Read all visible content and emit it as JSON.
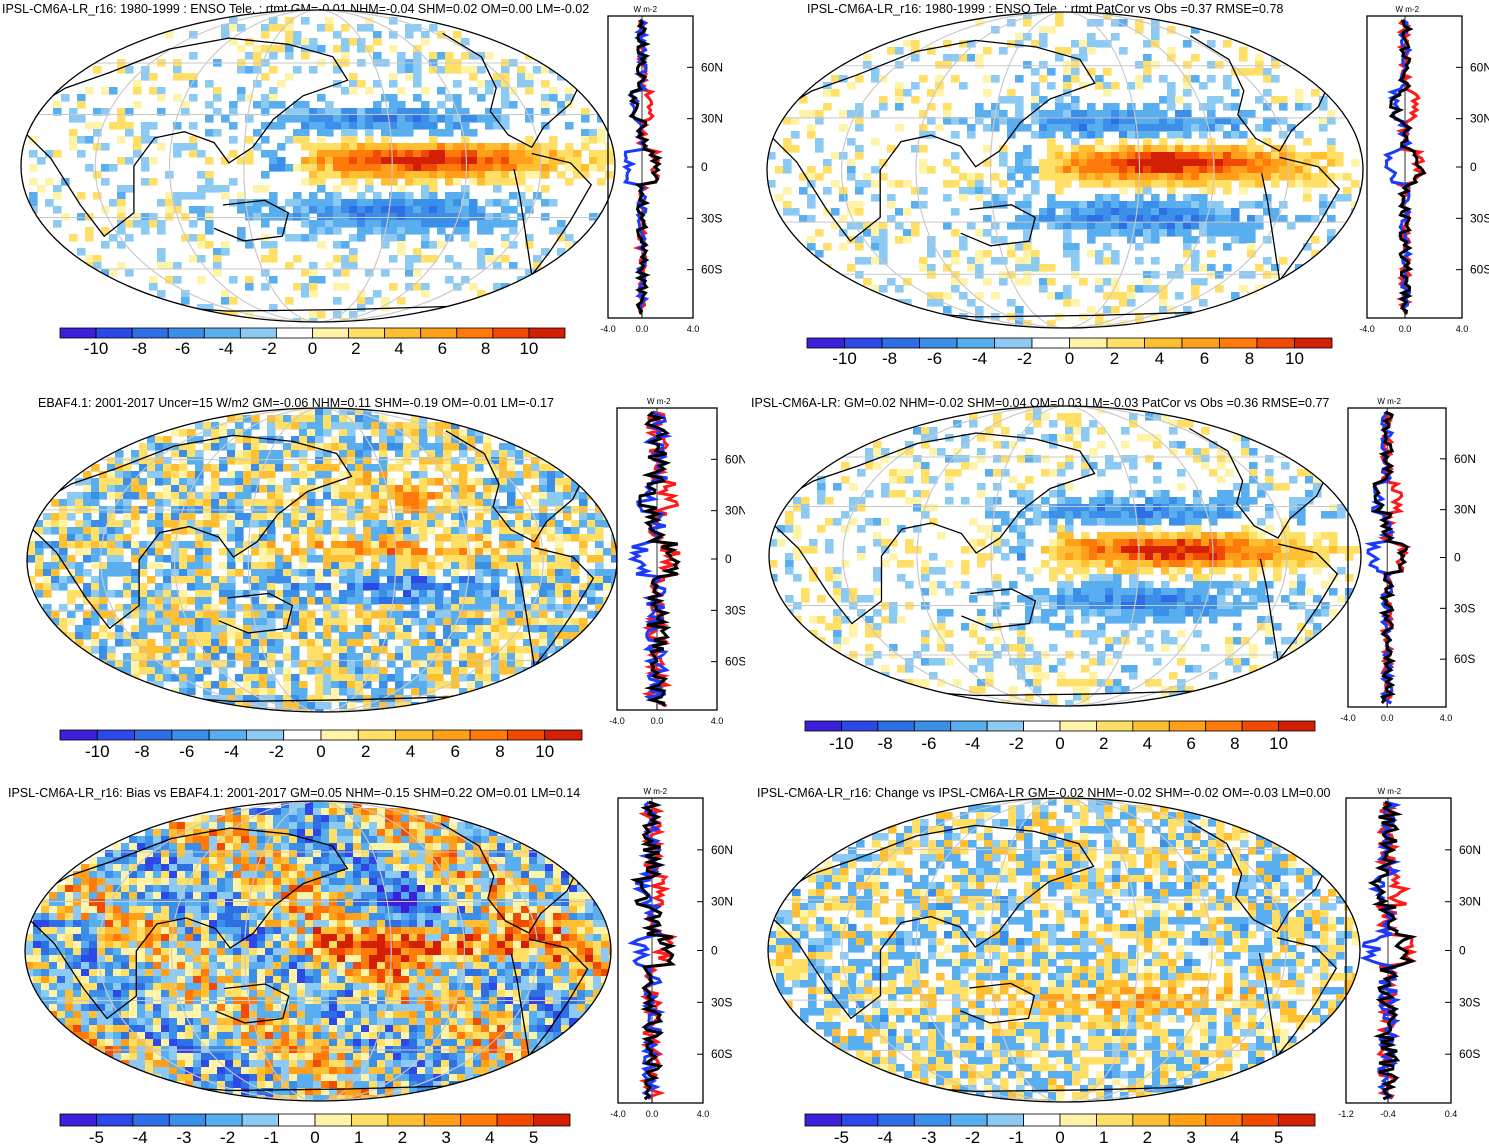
{
  "colors": {
    "div11": [
      "#3a20d8",
      "#2c49e8",
      "#2f6fe6",
      "#3c8fe8",
      "#59aef0",
      "#8ccaf4",
      "#ffffff",
      "#fff3a8",
      "#ffdf66",
      "#ffbf33",
      "#ff9f1a",
      "#ff7a0a",
      "#f04a05",
      "#d21f05"
    ],
    "ocean_blue": "#9fd0f5",
    "land_line": "#000000",
    "grid": "#c8c8c8",
    "line_red": "#ff1a1a",
    "line_blue": "#1a3bff",
    "line_black": "#000000"
  },
  "panels": [
    {
      "title": "IPSL-CM6A-LR_r16: 1980-1999 : ENSO Tele. : rtmt GM=-0.01 NHM=-0.04 SHM=0.02 OM=0.00 LM=-0.02",
      "units": "W m-2",
      "colorbar_labels": [
        "-10",
        "-8",
        "-6",
        "-4",
        "-2",
        "0",
        "2",
        "4",
        "6",
        "8",
        "10"
      ],
      "zonal_xticks": [
        "-4.0",
        "0.0",
        "4.0"
      ],
      "lat_labels": [
        "60N",
        "30N",
        "0",
        "30S",
        "60S"
      ]
    },
    {
      "title": "IPSL-CM6A-LR_r16: 1980-1999 : ENSO Tele. : rtmt PatCor vs Obs =0.37 RMSE=0.78",
      "units": "W m-2",
      "colorbar_labels": [
        "-10",
        "-8",
        "-6",
        "-4",
        "-2",
        "0",
        "2",
        "4",
        "6",
        "8",
        "10"
      ],
      "zonal_xticks": [
        "-4.0",
        "0.0",
        "4.0"
      ],
      "lat_labels": [
        "60N",
        "30N",
        "0",
        "30S",
        "60S"
      ]
    },
    {
      "title": "EBAF4.1: 2001-2017 Uncer=15 W/m2 GM=-0.06 NHM=0.11 SHM=-0.19 OM=-0.01 LM=-0.17",
      "units": "W m-2",
      "colorbar_labels": [
        "-10",
        "-8",
        "-6",
        "-4",
        "-2",
        "0",
        "2",
        "4",
        "6",
        "8",
        "10"
      ],
      "zonal_xticks": [
        "-4.0",
        "0.0",
        "4.0"
      ],
      "lat_labels": [
        "60N",
        "30N",
        "0",
        "30S",
        "60S"
      ]
    },
    {
      "title": "IPSL-CM6A-LR: GM=0.02 NHM=-0.02 SHM=0.04 OM=0.03 LM=-0.03 PatCor vs Obs =0.36 RMSE=0.77",
      "units": "W m-2",
      "colorbar_labels": [
        "-10",
        "-8",
        "-6",
        "-4",
        "-2",
        "0",
        "2",
        "4",
        "6",
        "8",
        "10"
      ],
      "zonal_xticks": [
        "-4.0",
        "0.0",
        "4.0"
      ],
      "lat_labels": [
        "60N",
        "30N",
        "0",
        "30S",
        "60S"
      ]
    },
    {
      "title": "IPSL-CM6A-LR_r16: Bias vs EBAF4.1: 2001-2017 GM=0.05 NHM=-0.15 SHM=0.22 OM=0.01 LM=0.14",
      "units": "W m-2",
      "colorbar_labels": [
        "-5",
        "-4",
        "-3",
        "-2",
        "-1",
        "0",
        "1",
        "2",
        "3",
        "4",
        "5"
      ],
      "zonal_xticks": [
        "-4.0",
        "0.0",
        "4.0"
      ],
      "lat_labels": [
        "60N",
        "30N",
        "0",
        "30S",
        "60S"
      ]
    },
    {
      "title": "IPSL-CM6A-LR_r16: Change vs IPSL-CM6A-LR GM=-0.02 NHM=-0.02 SHM=-0.02 OM=-0.03 LM=0.00",
      "units": "W m-2",
      "colorbar_labels": [
        "-5",
        "-4",
        "-3",
        "-2",
        "-1",
        "0",
        "1",
        "2",
        "3",
        "4",
        "5"
      ],
      "zonal_xticks": [
        "-1.2",
        "-0.4",
        "0.4"
      ],
      "lat_labels": [
        "60N",
        "30N",
        "0",
        "30S",
        "60S"
      ]
    }
  ],
  "chart_data": [
    {
      "type": "heatmap",
      "title": "IPSL-CM6A-LR_r16: 1980-1999 : ENSO Tele. : rtmt GM=-0.01 NHM=-0.04 SHM=0.02 OM=0.00 LM=-0.02",
      "colorbar_range": [
        -10,
        10
      ],
      "colorbar_ticks": [
        -10,
        -8,
        -6,
        -4,
        -2,
        0,
        2,
        4,
        6,
        8,
        10
      ],
      "zonal_mean_xlim": [
        -4,
        4
      ],
      "lat_ticks": [
        "60N",
        "30N",
        "0",
        "30S",
        "60S"
      ]
    },
    {
      "type": "heatmap",
      "title": "IPSL-CM6A-LR_r16: 1980-1999 : ENSO Tele. : rtmt PatCor vs Obs =0.37 RMSE=0.78",
      "colorbar_range": [
        -10,
        10
      ],
      "colorbar_ticks": [
        -10,
        -8,
        -6,
        -4,
        -2,
        0,
        2,
        4,
        6,
        8,
        10
      ],
      "zonal_mean_xlim": [
        -4,
        4
      ],
      "lat_ticks": [
        "60N",
        "30N",
        "0",
        "30S",
        "60S"
      ]
    },
    {
      "type": "heatmap",
      "title": "EBAF4.1: 2001-2017 Uncer=15 W/m2 GM=-0.06 NHM=0.11 SHM=-0.19 OM=-0.01 LM=-0.17",
      "colorbar_range": [
        -10,
        10
      ],
      "colorbar_ticks": [
        -10,
        -8,
        -6,
        -4,
        -2,
        0,
        2,
        4,
        6,
        8,
        10
      ],
      "zonal_mean_xlim": [
        -4,
        4
      ],
      "lat_ticks": [
        "60N",
        "30N",
        "0",
        "30S",
        "60S"
      ]
    },
    {
      "type": "heatmap",
      "title": "IPSL-CM6A-LR: GM=0.02 NHM=-0.02 SHM=0.04 OM=0.03 LM=-0.03 PatCor vs Obs =0.36 RMSE=0.77",
      "colorbar_range": [
        -10,
        10
      ],
      "colorbar_ticks": [
        -10,
        -8,
        -6,
        -4,
        -2,
        0,
        2,
        4,
        6,
        8,
        10
      ],
      "zonal_mean_xlim": [
        -4,
        4
      ],
      "lat_ticks": [
        "60N",
        "30N",
        "0",
        "30S",
        "60S"
      ]
    },
    {
      "type": "heatmap",
      "title": "IPSL-CM6A-LR_r16: Bias vs EBAF4.1: 2001-2017 GM=0.05 NHM=-0.15 SHM=0.22 OM=0.01 LM=0.14",
      "colorbar_range": [
        -5,
        5
      ],
      "colorbar_ticks": [
        -5,
        -4,
        -3,
        -2,
        -1,
        0,
        1,
        2,
        3,
        4,
        5
      ],
      "zonal_mean_xlim": [
        -4,
        4
      ],
      "lat_ticks": [
        "60N",
        "30N",
        "0",
        "30S",
        "60S"
      ]
    },
    {
      "type": "heatmap",
      "title": "IPSL-CM6A-LR_r16: Change vs IPSL-CM6A-LR GM=-0.02 NHM=-0.02 SHM=-0.02 OM=-0.03 LM=0.00",
      "colorbar_range": [
        -5,
        5
      ],
      "colorbar_ticks": [
        -5,
        -4,
        -3,
        -2,
        -1,
        0,
        1,
        2,
        3,
        4,
        5
      ],
      "zonal_mean_xlim": [
        -1.2,
        0.4
      ],
      "lat_ticks": [
        "60N",
        "30N",
        "0",
        "30S",
        "60S"
      ]
    }
  ]
}
